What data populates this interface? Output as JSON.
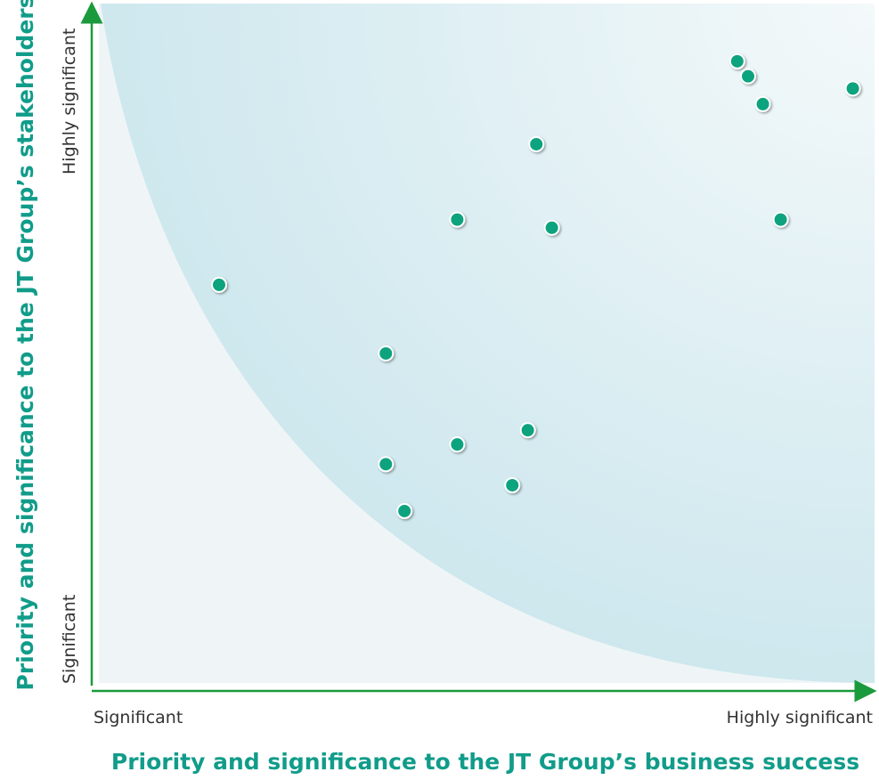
{
  "chart_data": {
    "type": "scatter",
    "title": "",
    "xlabel": "Priority and significance to the JT Group’s business success",
    "ylabel": "Priority and significance to the JT Group’s stakeholders",
    "x_tick_labels": [
      "Significant",
      "Highly significant"
    ],
    "y_tick_labels": [
      "Significant",
      "Highly significant"
    ],
    "xlim": [
      0,
      100
    ],
    "ylim": [
      0,
      100
    ],
    "grid": false,
    "legend": "none",
    "colors": {
      "point": "#0fa37f",
      "axis": "#1a9a3c",
      "title": "#119c8a",
      "shade_dark": "#c6e4ec",
      "shade_light": "#f0f6f7"
    },
    "points": [
      {
        "x": 15.5,
        "y": 58.6
      },
      {
        "x": 37.0,
        "y": 48.5
      },
      {
        "x": 37.0,
        "y": 32.2
      },
      {
        "x": 39.4,
        "y": 25.3
      },
      {
        "x": 46.2,
        "y": 68.2
      },
      {
        "x": 46.2,
        "y": 35.1
      },
      {
        "x": 53.3,
        "y": 29.1
      },
      {
        "x": 55.3,
        "y": 37.2
      },
      {
        "x": 56.4,
        "y": 79.3
      },
      {
        "x": 58.4,
        "y": 67.0
      },
      {
        "x": 82.3,
        "y": 91.5
      },
      {
        "x": 83.7,
        "y": 89.3
      },
      {
        "x": 85.6,
        "y": 85.2
      },
      {
        "x": 87.9,
        "y": 68.2
      },
      {
        "x": 97.2,
        "y": 87.5
      }
    ]
  }
}
